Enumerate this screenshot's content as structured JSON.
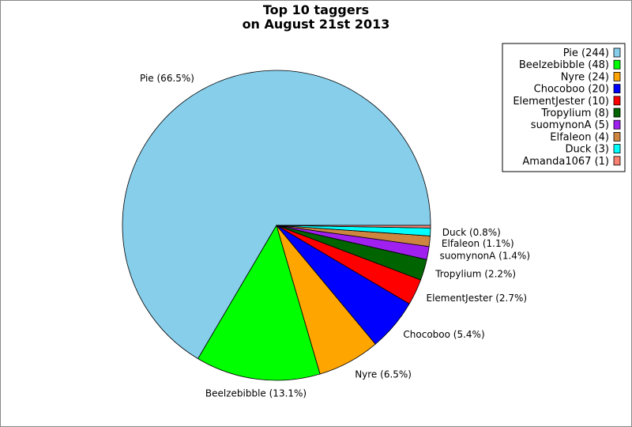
{
  "chart_data": {
    "type": "pie",
    "title": [
      "Top 10 taggers",
      "on August 21st 2013"
    ],
    "slices": [
      {
        "name": "Pie",
        "value": 244,
        "color": "#87ceeb",
        "legend": "Pie (244)",
        "label": "Pie (66.5%)"
      },
      {
        "name": "Beelzebibble",
        "value": 48,
        "color": "#00ff00",
        "legend": "Beelzebibble (48)",
        "label": "Beelzebibble (13.1%)"
      },
      {
        "name": "Nyre",
        "value": 24,
        "color": "#ffa500",
        "legend": "Nyre (24)",
        "label": "Nyre (6.5%)"
      },
      {
        "name": "Chocoboo",
        "value": 20,
        "color": "#0000ff",
        "legend": "Chocoboo (20)",
        "label": "Chocoboo (5.4%)"
      },
      {
        "name": "ElementJester",
        "value": 10,
        "color": "#ff0000",
        "legend": "ElementJester (10)",
        "label": "ElementJester (2.7%)"
      },
      {
        "name": "Tropylium",
        "value": 8,
        "color": "#006400",
        "legend": "Tropylium (8)",
        "label": "Tropylium (2.2%)"
      },
      {
        "name": "suomynonA",
        "value": 5,
        "color": "#a020f0",
        "legend": "suomynonA (5)",
        "label": "suomynonA (1.4%)"
      },
      {
        "name": "Elfaleon",
        "value": 4,
        "color": "#cd853f",
        "legend": "Elfaleon (4)",
        "label": "Elfaleon (1.1%)"
      },
      {
        "name": "Duck",
        "value": 3,
        "color": "#00ffff",
        "legend": "Duck (3)",
        "label": "Duck (0.8%)"
      },
      {
        "name": "Amanda1067",
        "value": 1,
        "color": "#fa8072",
        "legend": "Amanda1067 (1)",
        "label": ""
      }
    ],
    "legend_position": "top-right"
  }
}
